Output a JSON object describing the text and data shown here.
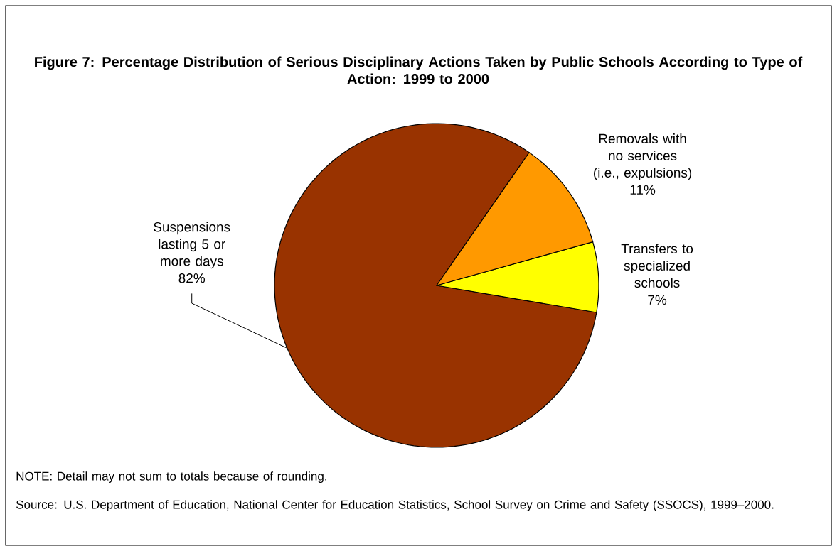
{
  "chart_data": {
    "type": "pie",
    "title": "Figure 7: Percentage Distribution of Serious Disciplinary Actions Taken by Public Schools According to Type of Action: 1999 to 2000",
    "categories": [
      "Suspensions lasting 5 or more days",
      "Transfers to specialized schools",
      "Removals with no services (i.e., expulsions)"
    ],
    "values": [
      82,
      7,
      11
    ],
    "colors": [
      "#993300",
      "#ffff00",
      "#ff9900"
    ],
    "value_labels": [
      "82%",
      "7%",
      "11%"
    ],
    "annotations": [
      "NOTE: Detail may not sum to totals because of rounding.",
      "Source: U.S. Department of Education, National Center for Education Statistics, School Survey on Crime and Safety (SSOCS), 1999–2000."
    ]
  }
}
